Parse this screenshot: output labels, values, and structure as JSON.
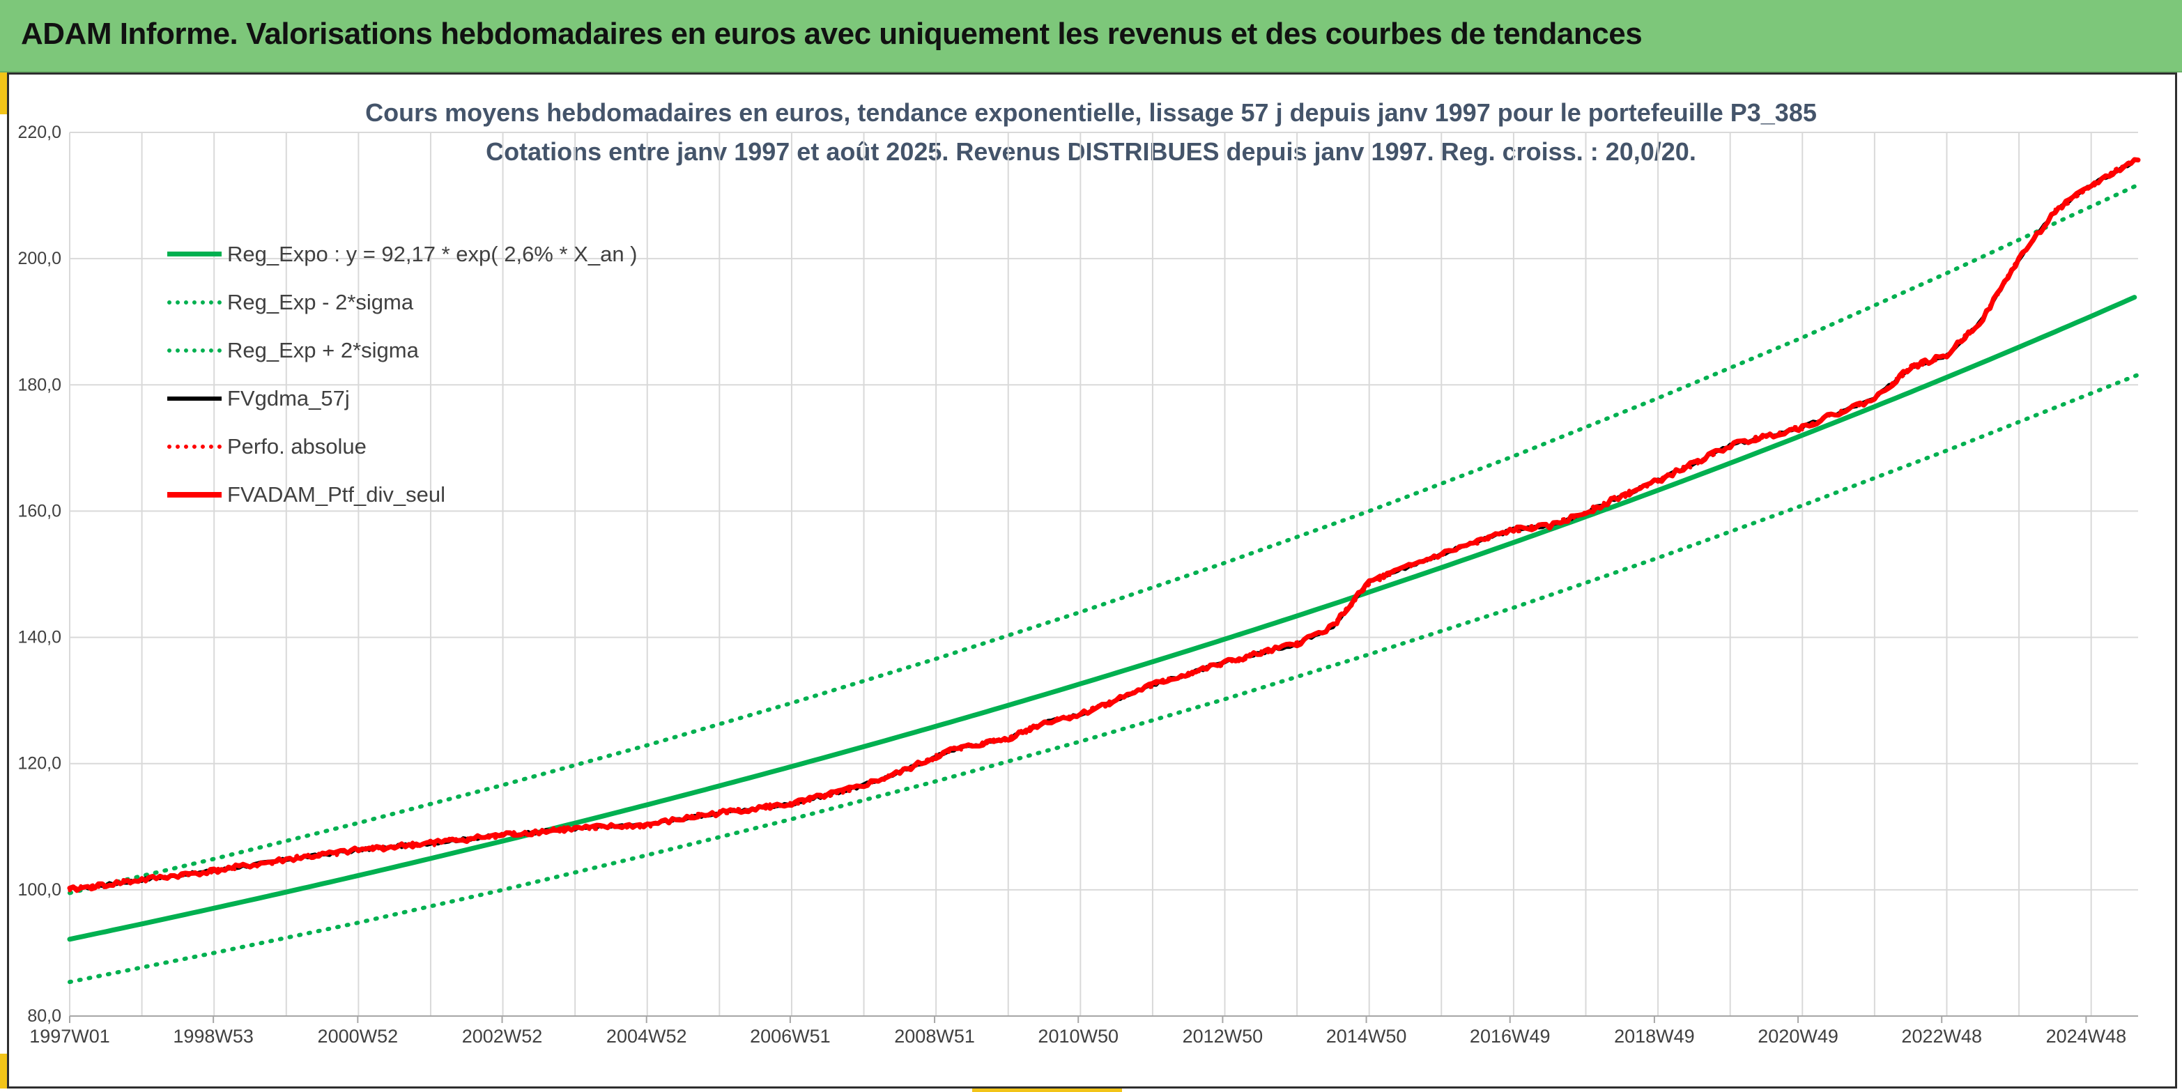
{
  "banner": {
    "title": "ADAM Informe. Valorisations hebdomadaires en euros avec uniquement les revenus et des courbes de tendances"
  },
  "colors": {
    "banner_bg": "#7dc77a",
    "regression": "#00b050",
    "sigma_band": "#00b050",
    "fv_gdma": "#000000",
    "perfo_absolue": "#ff0000",
    "fv_adam": "#ff0000",
    "grid": "#d9d9d9",
    "title_text": "#44546a",
    "accent": "#f2c418"
  },
  "chart_data": {
    "type": "line",
    "title": "Cours moyens hebdomadaires en euros, tendance exponentielle, lissage 57 j depuis janv 1997 pour le portefeuille P3_385",
    "subtitle": "Cotations entre janv 1997 et août 2025. Revenus DISTRIBUES depuis janv 1997. Reg. croiss. : 20,0/20.",
    "xlabel": "",
    "ylabel": "",
    "x_tick_labels": [
      "1997W01",
      "1998W53",
      "2000W52",
      "2002W52",
      "2004W52",
      "2006W51",
      "2008W51",
      "2010W50",
      "2012W50",
      "2014W50",
      "2016W49",
      "2018W49",
      "2020W49",
      "2022W48",
      "2024W48"
    ],
    "x_tick_years": [
      1997.0,
      1998.99,
      2000.99,
      2002.99,
      2004.99,
      2006.98,
      2008.98,
      2010.97,
      2012.97,
      2014.96,
      2016.95,
      2018.95,
      2020.94,
      2022.93,
      2024.93
    ],
    "y_tick_labels": [
      "80,0",
      "100,0",
      "120,0",
      "140,0",
      "160,0",
      "180,0",
      "200,0",
      "220,0"
    ],
    "xlim": [
      1997.0,
      2025.65
    ],
    "ylim": [
      80,
      220
    ],
    "grid": true,
    "legend_position": "top-left",
    "regression": {
      "a": 92.17,
      "rate": 0.026
    },
    "series": [
      {
        "name": "Reg_Expo : y = 92,17 * exp( 2,6% *  X_an )",
        "style": "solid",
        "kind": "regression",
        "x": [
          1997.0,
          1999.0,
          2001.0,
          2003.0,
          2005.0,
          2007.0,
          2009.0,
          2011.0,
          2013.0,
          2015.0,
          2017.0,
          2019.0,
          2021.0,
          2023.0,
          2025.65
        ],
        "y": [
          92.2,
          97.1,
          102.4,
          108.0,
          113.9,
          120.1,
          126.5,
          133.4,
          140.6,
          148.3,
          156.3,
          164.8,
          173.7,
          183.1,
          196.1
        ]
      },
      {
        "name": "Reg_Exp - 2*sigma",
        "style": "dotted",
        "kind": "band",
        "x": [
          1997.0,
          1999.0,
          2001.0,
          2003.0,
          2005.0,
          2007.0,
          2009.0,
          2011.0,
          2013.0,
          2015.0,
          2017.0,
          2019.0,
          2021.0,
          2023.0,
          2025.65
        ],
        "y": [
          85.4,
          90.0,
          94.8,
          100.0,
          105.5,
          111.2,
          117.2,
          123.5,
          130.2,
          137.3,
          144.7,
          152.6,
          160.9,
          169.6,
          181.6
        ]
      },
      {
        "name": "Reg_Exp + 2*sigma",
        "style": "dotted",
        "kind": "band",
        "x": [
          1997.0,
          1999.0,
          2001.0,
          2003.0,
          2005.0,
          2007.0,
          2009.0,
          2011.0,
          2013.0,
          2015.0,
          2017.0,
          2019.0,
          2021.0,
          2023.0,
          2025.65
        ],
        "y": [
          99.5,
          104.9,
          110.6,
          116.6,
          122.9,
          129.6,
          136.6,
          144.0,
          151.8,
          160.0,
          168.7,
          177.9,
          187.5,
          197.7,
          211.7
        ]
      },
      {
        "name": "FVgdma_57j",
        "style": "solid-thin",
        "kind": "smoothed",
        "x": [
          1997.0,
          1998.0,
          1999.0,
          2000.0,
          2001.0,
          2002.0,
          2003.0,
          2004.0,
          2005.0,
          2006.0,
          2007.0,
          2007.9,
          2008.5,
          2009.2,
          2010.0,
          2010.5,
          2011.0,
          2012.0,
          2013.0,
          2014.0,
          2014.5,
          2015.0,
          2016.0,
          2017.0,
          2017.5,
          2018.0,
          2018.5,
          2019.0,
          2020.0,
          2021.0,
          2021.5,
          2022.0,
          2022.5,
          2023.0,
          2023.5,
          2024.0,
          2024.5,
          2025.0,
          2025.65
        ],
        "y": [
          100.0,
          101.6,
          103.0,
          104.8,
          106.3,
          107.4,
          108.7,
          109.7,
          110.3,
          112.2,
          113.6,
          116.2,
          118.6,
          122.1,
          124.0,
          126.5,
          127.8,
          132.5,
          136.0,
          139.0,
          141.8,
          148.8,
          153.2,
          157.1,
          157.6,
          159.8,
          162.4,
          164.8,
          170.4,
          173.3,
          175.6,
          177.8,
          182.8,
          184.7,
          190.5,
          200.0,
          207.5,
          211.6,
          215.8
        ]
      },
      {
        "name": "Perfo. absolue",
        "style": "dotted",
        "kind": "performance",
        "x": [
          1997.0,
          1998.0,
          1999.0,
          2000.0,
          2001.0,
          2002.0,
          2003.0,
          2004.0,
          2005.0,
          2006.0,
          2007.0,
          2007.9,
          2008.5,
          2009.2,
          2010.0,
          2010.5,
          2011.0,
          2012.0,
          2013.0,
          2014.0,
          2014.5,
          2015.0,
          2016.0,
          2017.0,
          2017.5,
          2018.0,
          2018.5,
          2019.0,
          2020.0,
          2021.0,
          2021.5,
          2022.0,
          2022.5,
          2023.0,
          2023.5,
          2024.0,
          2024.5,
          2025.0,
          2025.65
        ],
        "y": [
          100.0,
          101.6,
          103.0,
          104.8,
          106.3,
          107.4,
          108.7,
          109.7,
          110.3,
          112.2,
          113.6,
          116.2,
          118.6,
          122.1,
          124.0,
          126.5,
          127.8,
          132.5,
          136.0,
          139.0,
          141.8,
          148.8,
          153.2,
          157.1,
          157.6,
          159.8,
          162.4,
          164.8,
          170.4,
          173.3,
          175.6,
          177.8,
          182.8,
          184.7,
          190.5,
          200.0,
          207.5,
          211.6,
          215.8
        ]
      },
      {
        "name": "FVADAM_Ptf_div_seul",
        "style": "solid-thick",
        "kind": "portfolio",
        "x": [
          1997.0,
          1998.0,
          1999.0,
          2000.0,
          2001.0,
          2002.0,
          2003.0,
          2004.0,
          2005.0,
          2006.0,
          2007.0,
          2007.9,
          2008.5,
          2009.2,
          2010.0,
          2010.5,
          2011.0,
          2012.0,
          2013.0,
          2014.0,
          2014.5,
          2015.0,
          2016.0,
          2017.0,
          2017.5,
          2018.0,
          2018.5,
          2019.0,
          2020.0,
          2021.0,
          2021.5,
          2022.0,
          2022.5,
          2023.0,
          2023.5,
          2024.0,
          2024.5,
          2025.0,
          2025.65
        ],
        "y": [
          100.0,
          101.6,
          103.0,
          104.8,
          106.3,
          107.4,
          108.7,
          109.7,
          110.3,
          112.2,
          113.6,
          116.2,
          118.6,
          122.1,
          124.0,
          126.5,
          127.8,
          132.5,
          136.0,
          139.0,
          141.8,
          148.8,
          153.2,
          157.1,
          157.6,
          159.8,
          162.4,
          164.8,
          170.4,
          173.3,
          175.6,
          177.8,
          182.8,
          184.7,
          190.5,
          200.0,
          207.5,
          211.6,
          215.8
        ]
      }
    ]
  }
}
